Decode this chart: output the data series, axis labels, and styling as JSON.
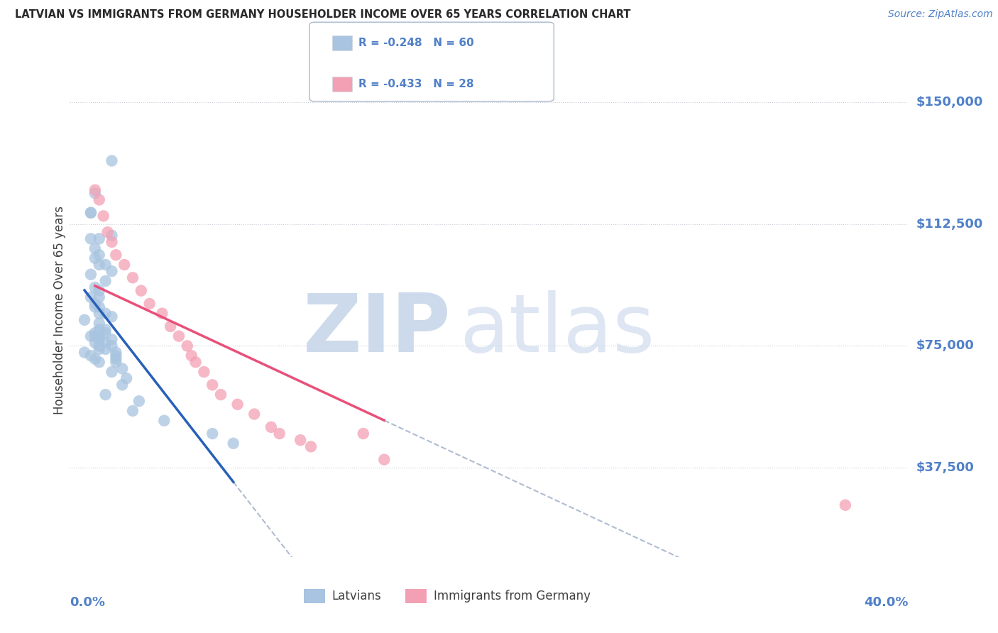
{
  "title": "LATVIAN VS IMMIGRANTS FROM GERMANY HOUSEHOLDER INCOME OVER 65 YEARS CORRELATION CHART",
  "source": "Source: ZipAtlas.com",
  "ylabel": "Householder Income Over 65 years",
  "y_tick_vals": [
    37500,
    75000,
    112500,
    150000
  ],
  "y_tick_labels": [
    "$37,500",
    "$75,000",
    "$112,500",
    "$150,000"
  ],
  "x_min": 0.0,
  "x_max": 0.4,
  "y_min": 10000,
  "y_max": 162000,
  "latvian_color": "#a8c4e0",
  "german_color": "#f4a0b4",
  "latvian_line_color": "#2860b8",
  "german_line_color": "#e8507a",
  "dashed_line_color": "#b0bcd0",
  "title_color": "#282828",
  "axis_color": "#5080c8",
  "legend_edge_color": "#a8b8cc",
  "grid_color": "#c8ccd6",
  "latvian_x": [
    0.02,
    0.012,
    0.01,
    0.02,
    0.01,
    0.01,
    0.014,
    0.012,
    0.014,
    0.012,
    0.017,
    0.014,
    0.02,
    0.01,
    0.017,
    0.012,
    0.014,
    0.01,
    0.014,
    0.012,
    0.014,
    0.012,
    0.017,
    0.014,
    0.02,
    0.007,
    0.014,
    0.017,
    0.014,
    0.012,
    0.017,
    0.01,
    0.014,
    0.012,
    0.02,
    0.014,
    0.017,
    0.012,
    0.014,
    0.02,
    0.017,
    0.014,
    0.022,
    0.007,
    0.022,
    0.01,
    0.022,
    0.012,
    0.022,
    0.014,
    0.025,
    0.02,
    0.027,
    0.025,
    0.017,
    0.033,
    0.03,
    0.045,
    0.068,
    0.078
  ],
  "latvian_y": [
    132000,
    122000,
    116000,
    109000,
    116000,
    108000,
    108000,
    105000,
    103000,
    102000,
    100000,
    100000,
    98000,
    97000,
    95000,
    93000,
    92000,
    90000,
    90000,
    88000,
    87000,
    87000,
    85000,
    85000,
    84000,
    83000,
    82000,
    80000,
    80000,
    79000,
    79000,
    78000,
    78000,
    78000,
    77000,
    77000,
    76000,
    76000,
    75000,
    75000,
    74000,
    74000,
    73000,
    73000,
    72000,
    72000,
    71000,
    71000,
    70000,
    70000,
    68000,
    67000,
    65000,
    63000,
    60000,
    58000,
    55000,
    52000,
    48000,
    45000
  ],
  "german_x": [
    0.012,
    0.014,
    0.016,
    0.018,
    0.02,
    0.022,
    0.026,
    0.03,
    0.034,
    0.038,
    0.044,
    0.048,
    0.052,
    0.056,
    0.058,
    0.06,
    0.064,
    0.068,
    0.072,
    0.08,
    0.088,
    0.096,
    0.1,
    0.11,
    0.115,
    0.14,
    0.15,
    0.37
  ],
  "german_y": [
    123000,
    120000,
    115000,
    110000,
    107000,
    103000,
    100000,
    96000,
    92000,
    88000,
    85000,
    81000,
    78000,
    75000,
    72000,
    70000,
    67000,
    63000,
    60000,
    57000,
    54000,
    50000,
    48000,
    46000,
    44000,
    48000,
    40000,
    26000
  ],
  "latvian_R": -0.248,
  "latvian_N": 60,
  "german_R": -0.433,
  "german_N": 28
}
